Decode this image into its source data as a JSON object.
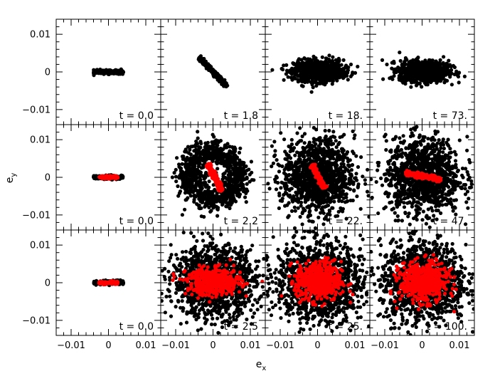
{
  "chart_data": {
    "type": "scatter",
    "layout": {
      "rows": 3,
      "cols": 4
    },
    "xlabel": "e",
    "xlabel_sub": "x",
    "ylabel": "e",
    "ylabel_sub": "y",
    "xlim": [
      -0.014,
      0.014
    ],
    "ylim": [
      -0.014,
      0.014
    ],
    "x_ticks": [
      -0.01,
      0,
      0.01
    ],
    "x_tick_labels": [
      "−0.01",
      "0",
      "0.01"
    ],
    "y_ticks": [
      -0.01,
      0,
      0.01
    ],
    "y_tick_labels": [
      "−0.01",
      "0",
      "0.01"
    ],
    "grid": false,
    "colors": {
      "black_series": "#000000",
      "red_series": "#ff0000"
    },
    "panels": [
      {
        "row": 0,
        "col": 0,
        "label": "t = 0.0",
        "black": {
          "shape": "line",
          "cx": 0,
          "cy": 0,
          "angle_deg": 0,
          "half_length": 0.004,
          "width": 0.00025,
          "n": 260
        }
      },
      {
        "row": 0,
        "col": 1,
        "label": "t = 1.8",
        "black": {
          "shape": "line",
          "cx": 0,
          "cy": 0,
          "angle_deg": -45,
          "half_length": 0.0053,
          "width": 0.00025,
          "n": 340
        }
      },
      {
        "row": 0,
        "col": 2,
        "label": "t = 18.",
        "black": {
          "shape": "blob",
          "cx": 0.0003,
          "cy": 0.0003,
          "sx": 0.0033,
          "sy": 0.0014,
          "n": 900
        }
      },
      {
        "row": 0,
        "col": 3,
        "label": "t = 73.",
        "black": {
          "shape": "blob",
          "cx": 0.0005,
          "cy": 0.0002,
          "sx": 0.0033,
          "sy": 0.0014,
          "n": 900
        }
      },
      {
        "row": 1,
        "col": 0,
        "label": "t = 0.0",
        "black": {
          "shape": "line",
          "cx": 0,
          "cy": 0,
          "angle_deg": 0,
          "half_length": 0.004,
          "width": 0.00025,
          "n": 160
        },
        "red": {
          "shape": "line",
          "cx": 0,
          "cy": 0,
          "angle_deg": 0,
          "half_length": 0.0025,
          "width": 0.0002,
          "n": 120
        }
      },
      {
        "row": 1,
        "col": 1,
        "label": "t = 2.2",
        "black": {
          "shape": "ring",
          "cx": 0.0003,
          "cy": 0.0004,
          "r": 0.0066,
          "sr": 0.0018,
          "n": 950
        },
        "red": {
          "shape": "line",
          "cx": 0.0005,
          "cy": 0,
          "angle_deg": -62,
          "half_length": 0.004,
          "width": 0.0003,
          "n": 220
        }
      },
      {
        "row": 1,
        "col": 2,
        "label": "t = 22.",
        "black": {
          "shape": "blob",
          "cx": 0.0002,
          "cy": 0.0003,
          "sx": 0.0048,
          "sy": 0.005,
          "n": 1150
        },
        "red": {
          "shape": "line",
          "cx": 0.0002,
          "cy": 0.0002,
          "angle_deg": -62,
          "half_length": 0.0035,
          "width": 0.0003,
          "n": 200
        }
      },
      {
        "row": 1,
        "col": 3,
        "label": "t = 47.",
        "black": {
          "shape": "blob",
          "cx": 0.0003,
          "cy": 0.0003,
          "sx": 0.005,
          "sy": 0.005,
          "n": 1150
        },
        "red": {
          "shape": "line",
          "cx": 0.0003,
          "cy": 0.0003,
          "angle_deg": -10,
          "half_length": 0.0048,
          "width": 0.0003,
          "n": 220
        }
      },
      {
        "row": 2,
        "col": 0,
        "label": "t = 0.0",
        "black": {
          "shape": "line",
          "cx": 0,
          "cy": 0,
          "angle_deg": 0,
          "half_length": 0.004,
          "width": 0.00025,
          "n": 160
        },
        "red": {
          "shape": "line",
          "cx": 0,
          "cy": 0,
          "angle_deg": 0,
          "half_length": 0.0025,
          "width": 0.0002,
          "n": 120
        }
      },
      {
        "row": 2,
        "col": 1,
        "label": "t = 2.5",
        "black": {
          "shape": "blob",
          "cx": 0.0003,
          "cy": 0.0002,
          "sx": 0.0055,
          "sy": 0.0046,
          "n": 1250
        },
        "red": {
          "shape": "blob",
          "cx": 0.0003,
          "cy": 0.0002,
          "sx": 0.0036,
          "sy": 0.0018,
          "n": 420
        }
      },
      {
        "row": 2,
        "col": 2,
        "label": "t = 25.",
        "black": {
          "shape": "blob",
          "cx": 0.0003,
          "cy": 0.0002,
          "sx": 0.0058,
          "sy": 0.0052,
          "n": 1300
        },
        "red": {
          "shape": "blob",
          "cx": 0.0003,
          "cy": 0.0004,
          "sx": 0.003,
          "sy": 0.0026,
          "n": 520
        }
      },
      {
        "row": 2,
        "col": 3,
        "label": "t = 100.",
        "black": {
          "shape": "blob",
          "cx": 0.0004,
          "cy": 0.0002,
          "sx": 0.0058,
          "sy": 0.0052,
          "n": 1300
        },
        "red": {
          "shape": "blob",
          "cx": 0.0004,
          "cy": 0.0002,
          "sx": 0.0032,
          "sy": 0.0026,
          "n": 520
        }
      }
    ]
  }
}
